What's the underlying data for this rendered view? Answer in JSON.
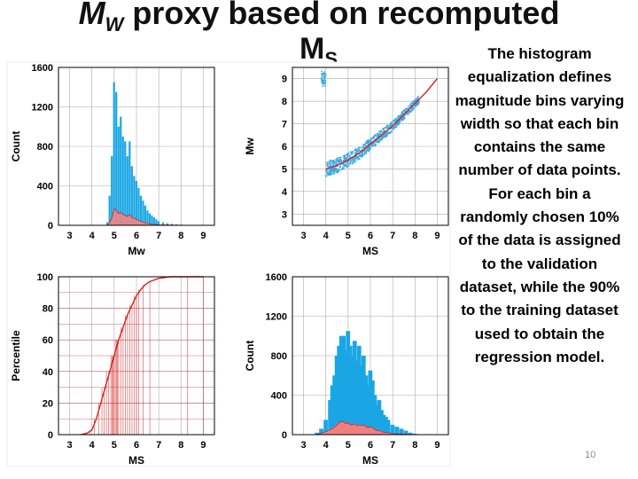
{
  "title": {
    "main": "M",
    "sub": "W",
    "rest": " proxy based on recomputed",
    "line2": "M",
    "line2_sub": "S"
  },
  "description": "The histogram equalization defines magnitude bins varying width so that each bin contains the same number of data points. For each bin a randomly chosen 10% of the data is assigned to the validation dataset, while the 90% to the training dataset used to obtain the regression model.",
  "slide_number": "10",
  "colors": {
    "histogram": "#1aa6e4",
    "subset": "#f08080",
    "line": "#d62020",
    "scatter": "#3aa9e0",
    "grid": "#aaaaaa"
  },
  "chart_data": [
    {
      "type": "bar",
      "xlabel": "Mw",
      "ylabel": "Count",
      "xlim": [
        2.5,
        9.5
      ],
      "ylim": [
        0,
        1600
      ],
      "xticks": [
        "3",
        "4",
        "5",
        "6",
        "7",
        "8",
        "9"
      ],
      "yticks": [
        "0",
        "400",
        "800",
        "1200",
        "1600"
      ],
      "series": [
        {
          "x": [
            4.7,
            4.8,
            4.9,
            5.0,
            5.1,
            5.2,
            5.3,
            5.4,
            5.5,
            5.6,
            5.7,
            5.8,
            5.9,
            6.0,
            6.1,
            6.2,
            6.3,
            6.4,
            6.5,
            6.6,
            6.7,
            6.8,
            6.9,
            7.0,
            7.2,
            7.4,
            7.6,
            7.8,
            8.0
          ],
          "values": [
            30,
            300,
            700,
            1450,
            1350,
            1000,
            1100,
            900,
            850,
            700,
            850,
            600,
            500,
            450,
            380,
            300,
            250,
            200,
            150,
            120,
            100,
            80,
            60,
            40,
            30,
            20,
            15,
            10,
            8
          ]
        },
        {
          "x": [
            4.7,
            4.8,
            4.9,
            5.0,
            5.1,
            5.2,
            5.3,
            5.4,
            5.5,
            5.6,
            5.7,
            5.8,
            5.9,
            6.0,
            6.1,
            6.2,
            6.3,
            6.4,
            6.5,
            6.6,
            6.7,
            6.8,
            6.9,
            7.0,
            7.2,
            7.4,
            7.6,
            7.8,
            8.0
          ],
          "values": [
            5,
            30,
            80,
            170,
            150,
            120,
            130,
            110,
            100,
            90,
            110,
            80,
            70,
            60,
            50,
            40,
            30,
            25,
            20,
            15,
            12,
            10,
            8,
            5,
            4,
            3,
            2,
            1,
            1
          ]
        }
      ]
    },
    {
      "type": "scatter",
      "xlabel": "MS",
      "ylabel": "Mw",
      "xlim": [
        2.5,
        9.5
      ],
      "ylim": [
        2.5,
        9.5
      ],
      "xticks": [
        "3",
        "4",
        "5",
        "6",
        "7",
        "8",
        "9"
      ],
      "yticks": [
        "3",
        "4",
        "5",
        "6",
        "7",
        "8",
        "9"
      ],
      "fit": {
        "x": [
          4.0,
          4.5,
          5.0,
          5.5,
          6.0,
          6.5,
          7.0,
          7.5,
          8.0,
          8.5,
          9.0
        ],
        "y": [
          5.0,
          5.15,
          5.4,
          5.7,
          6.1,
          6.5,
          6.9,
          7.4,
          7.9,
          8.4,
          9.0
        ]
      }
    },
    {
      "type": "line",
      "xlabel": "MS",
      "ylabel": "Percentile",
      "xlim": [
        2.5,
        9.5
      ],
      "ylim": [
        0,
        100
      ],
      "xticks": [
        "3",
        "4",
        "5",
        "6",
        "7",
        "8",
        "9"
      ],
      "yticks": [
        "0",
        "20",
        "40",
        "60",
        "80",
        "100"
      ],
      "x": [
        3.5,
        3.8,
        4.0,
        4.2,
        4.4,
        4.6,
        4.8,
        5.0,
        5.2,
        5.4,
        5.6,
        5.8,
        6.0,
        6.2,
        6.4,
        6.6,
        7.0,
        7.5,
        8.0,
        9.0
      ],
      "y": [
        0,
        1,
        3,
        10,
        20,
        30,
        40,
        50,
        60,
        68,
        76,
        82,
        88,
        92,
        95,
        97,
        99,
        100,
        100,
        100
      ],
      "bin_edges": [
        3.5,
        3.9,
        4.1,
        4.3,
        4.45,
        4.55,
        4.65,
        4.75,
        4.85,
        4.9,
        4.95,
        5.0,
        5.05,
        5.1,
        5.15,
        5.2,
        5.3,
        5.4,
        5.5,
        5.6,
        5.7,
        5.8,
        5.9,
        6.0,
        6.1,
        6.3,
        6.6,
        8.3,
        9.0
      ]
    },
    {
      "type": "bar",
      "xlabel": "MS",
      "ylabel": "Count",
      "xlim": [
        2.5,
        9.5
      ],
      "ylim": [
        0,
        1600
      ],
      "xticks": [
        "3",
        "4",
        "5",
        "6",
        "7",
        "8",
        "9"
      ],
      "yticks": [
        "0",
        "400",
        "800",
        "1200",
        "1600"
      ],
      "series": [
        {
          "x": [
            3.6,
            3.8,
            4.0,
            4.2,
            4.3,
            4.4,
            4.5,
            4.6,
            4.7,
            4.8,
            4.9,
            5.0,
            5.1,
            5.2,
            5.3,
            5.4,
            5.5,
            5.6,
            5.7,
            5.8,
            5.9,
            6.0,
            6.1,
            6.2,
            6.3,
            6.4,
            6.5,
            6.6,
            6.7,
            6.8,
            7.0,
            7.2,
            7.4,
            7.6,
            7.8,
            8.0
          ],
          "values": [
            20,
            60,
            150,
            350,
            500,
            600,
            800,
            900,
            1000,
            1000,
            850,
            1050,
            900,
            800,
            950,
            750,
            900,
            700,
            800,
            600,
            500,
            650,
            550,
            400,
            300,
            350,
            250,
            200,
            180,
            150,
            100,
            80,
            60,
            40,
            20,
            10
          ]
        },
        {
          "x": [
            3.6,
            3.8,
            4.0,
            4.2,
            4.3,
            4.4,
            4.5,
            4.6,
            4.7,
            4.8,
            4.9,
            5.0,
            5.1,
            5.2,
            5.3,
            5.4,
            5.5,
            5.6,
            5.7,
            5.8,
            5.9,
            6.0,
            6.1,
            6.2,
            6.3,
            6.4,
            6.5,
            6.6,
            6.7,
            6.8,
            7.0,
            7.2,
            7.4,
            7.6,
            7.8,
            8.0
          ],
          "values": [
            5,
            15,
            30,
            50,
            60,
            80,
            100,
            120,
            130,
            130,
            110,
            120,
            100,
            100,
            110,
            90,
            100,
            90,
            100,
            80,
            70,
            80,
            70,
            50,
            40,
            45,
            30,
            25,
            20,
            20,
            10,
            8,
            6,
            4,
            2,
            1
          ]
        }
      ]
    }
  ]
}
